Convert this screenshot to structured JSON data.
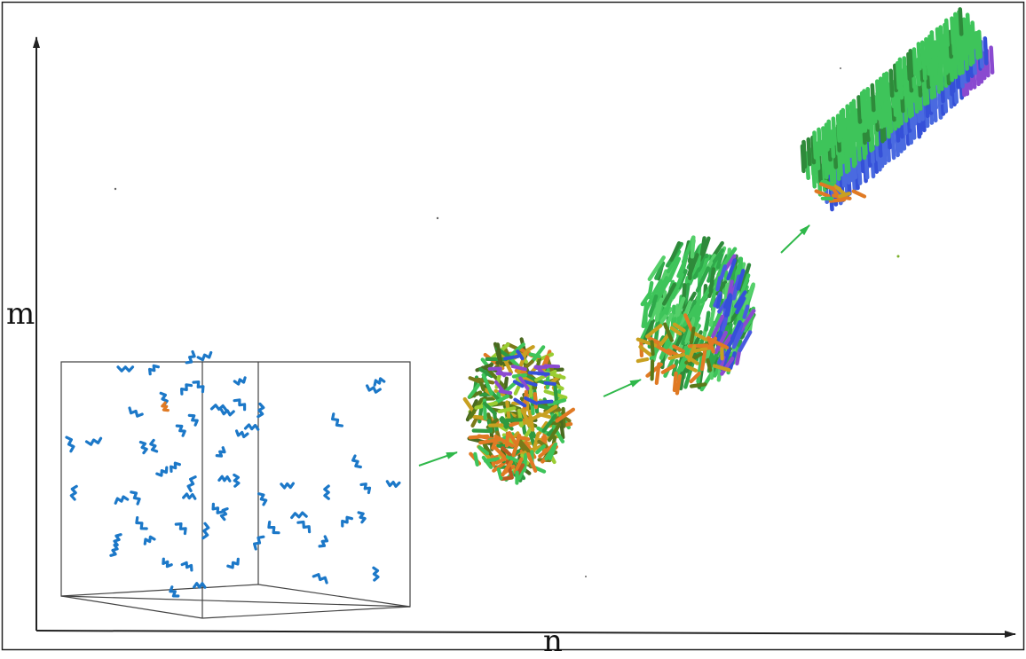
{
  "axes": {
    "x_label": "n",
    "y_label": "m"
  },
  "colors": {
    "monomer": "#1c78c8",
    "arrow": "#2fb84a",
    "frame": "#222222",
    "box_edge": "#444444",
    "sheet_green": "#3ec45a",
    "sheet_blue": "#3550d8",
    "sheet_purple": "#8a4ad0",
    "oligomer_orange": "#e07a24",
    "oligomer_olive": "#7a7a1a"
  },
  "stages": [
    {
      "name": "dispersed-monomers"
    },
    {
      "name": "disordered-oligomer"
    },
    {
      "name": "partially-ordered-aggregate"
    },
    {
      "name": "ordered-fibril"
    }
  ]
}
